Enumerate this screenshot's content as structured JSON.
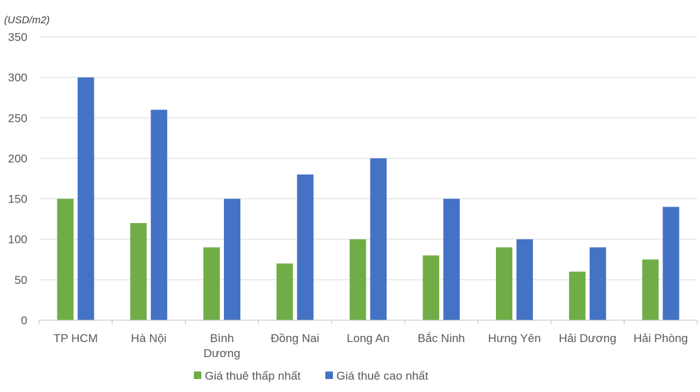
{
  "chart_data": {
    "type": "bar",
    "unit_label": "(USD/m2)",
    "categories": [
      [
        "TP HCM"
      ],
      [
        "Hà Nội"
      ],
      [
        "Bình",
        "Dương"
      ],
      [
        "Đồng Nai"
      ],
      [
        "Long An"
      ],
      [
        "Bắc Ninh"
      ],
      [
        "Hưng Yên"
      ],
      [
        "Hải Dương"
      ],
      [
        "Hải Phòng"
      ]
    ],
    "series": [
      {
        "name": "Giá thuê thấp nhất",
        "color": "#70ad47",
        "values": [
          150,
          120,
          90,
          70,
          100,
          80,
          90,
          60,
          75
        ]
      },
      {
        "name": "Giá thuê cao nhất",
        "color": "#4472c4",
        "values": [
          300,
          260,
          150,
          180,
          200,
          150,
          100,
          90,
          140
        ]
      }
    ],
    "ylim": [
      0,
      350
    ],
    "yticks": [
      0,
      50,
      100,
      150,
      200,
      250,
      300,
      350
    ],
    "grid": true,
    "legend": "bottom"
  }
}
